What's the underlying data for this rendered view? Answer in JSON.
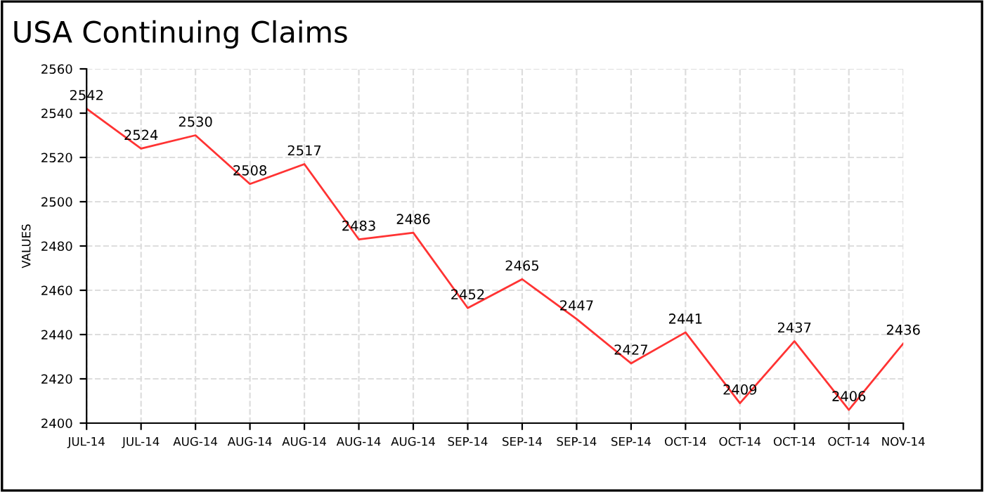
{
  "chart_data": {
    "type": "line",
    "title": "USA Continuing Claims",
    "ylabel": "VALUES",
    "categories": [
      "JUL-14",
      "JUL-14",
      "AUG-14",
      "AUG-14",
      "AUG-14",
      "AUG-14",
      "AUG-14",
      "SEP-14",
      "SEP-14",
      "SEP-14",
      "SEP-14",
      "OCT-14",
      "OCT-14",
      "OCT-14",
      "OCT-14",
      "NOV-14"
    ],
    "values": [
      2542,
      2524,
      2530,
      2508,
      2517,
      2483,
      2486,
      2452,
      2465,
      2447,
      2427,
      2441,
      2409,
      2437,
      2406,
      2436
    ],
    "color": "#ff3333",
    "ylim": [
      2400,
      2560
    ],
    "yticks": [
      2400,
      2420,
      2440,
      2460,
      2480,
      2500,
      2520,
      2540,
      2560
    ],
    "grid": true,
    "data_labels": true,
    "marker": "none",
    "line_style": "solid"
  }
}
